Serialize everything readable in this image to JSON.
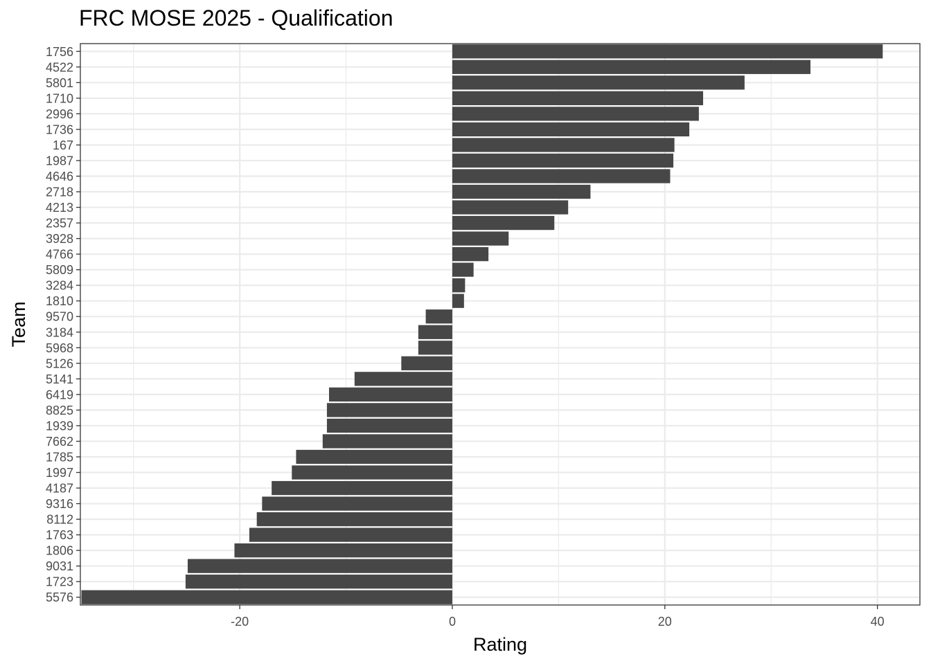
{
  "chart_data": {
    "type": "bar",
    "orientation": "horizontal",
    "title": "FRC MOSE 2025 - Qualification",
    "xlabel": "Rating",
    "ylabel": "Team",
    "xlim": [
      -35,
      44
    ],
    "x_ticks": [
      -20,
      0,
      20,
      40
    ],
    "x_tick_labels": [
      "-20",
      "0",
      "20",
      "40"
    ],
    "grid": true,
    "legend": "none",
    "bar_color": "#474747",
    "grid_color": "#ebebeb",
    "categories": [
      "1756",
      "4522",
      "5801",
      "1710",
      "2996",
      "1736",
      "167",
      "1987",
      "4646",
      "2718",
      "4213",
      "2357",
      "3928",
      "4766",
      "5809",
      "3284",
      "1810",
      "9570",
      "3184",
      "5968",
      "5126",
      "5141",
      "6419",
      "8825",
      "1939",
      "7662",
      "1785",
      "1997",
      "4187",
      "9316",
      "8112",
      "1763",
      "1806",
      "9031",
      "1723",
      "5576"
    ],
    "values": [
      40.5,
      33.7,
      27.5,
      23.6,
      23.2,
      22.3,
      20.9,
      20.8,
      20.5,
      13.0,
      10.9,
      9.6,
      5.3,
      3.4,
      2.0,
      1.2,
      1.1,
      -2.5,
      -3.2,
      -3.2,
      -4.8,
      -9.2,
      -11.6,
      -11.8,
      -11.8,
      -12.2,
      -14.7,
      -15.1,
      -17.0,
      -17.9,
      -18.4,
      -19.1,
      -20.5,
      -24.9,
      -25.1,
      -34.9
    ]
  }
}
